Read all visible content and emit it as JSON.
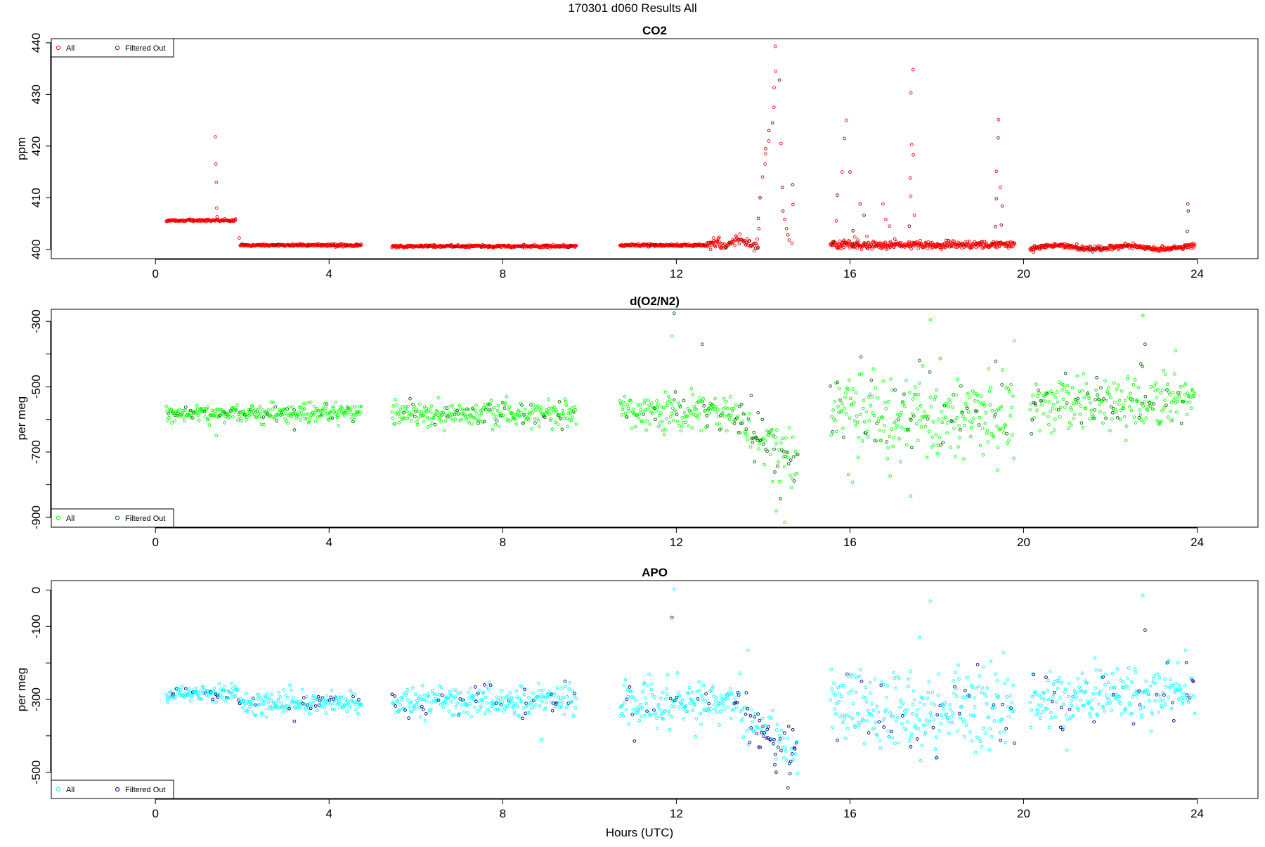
{
  "figure": {
    "title": "170301   d060   Results All",
    "xlabel": "Hours (UTC)"
  },
  "chart_data": [
    {
      "type": "scatter",
      "title": "CO2",
      "xlabel": "",
      "ylabel": "ppm",
      "xlim": [
        -2.4,
        25.4
      ],
      "ylim": [
        398.2,
        440.8
      ],
      "xticks": [
        0,
        4,
        8,
        12,
        16,
        20,
        24
      ],
      "yticks": [
        400,
        410,
        420,
        430,
        440
      ],
      "legend_position": "top-left",
      "series": [
        {
          "name": "All",
          "color": "#ff0000"
        },
        {
          "name": "Filtered Out",
          "color": "#8b0000"
        }
      ],
      "points": {
        "count": 1500,
        "filtered_fraction": 0.15
      }
    },
    {
      "type": "scatter",
      "title": "d(O2/N2)",
      "xlabel": "",
      "ylabel": "per meg",
      "xlim": [
        -2.4,
        25.4
      ],
      "ylim": [
        -930,
        -263
      ],
      "xticks": [
        0,
        4,
        8,
        12,
        16,
        20,
        24
      ],
      "yticks": [
        -300,
        -500,
        -700,
        -900
      ],
      "legend_position": "bottom-left",
      "series": [
        {
          "name": "All",
          "color": "#00ff00"
        },
        {
          "name": "Filtered Out",
          "color": "#006400"
        }
      ],
      "points": {
        "count": 1300,
        "filtered_fraction": 0.15
      }
    },
    {
      "type": "scatter",
      "title": "APO",
      "xlabel": "",
      "ylabel": "per meg",
      "xlim": [
        -2.4,
        25.4
      ],
      "ylim": [
        -572,
        26
      ],
      "xticks": [
        0,
        4,
        8,
        12,
        16,
        20,
        24
      ],
      "yticks": [
        0,
        -100,
        -300,
        -500
      ],
      "legend_position": "bottom-left",
      "series": [
        {
          "name": "All",
          "color": "#00ffff"
        },
        {
          "name": "Filtered Out",
          "color": "#00008b"
        }
      ],
      "points": {
        "count": 1300,
        "filtered_fraction": 0.15
      }
    }
  ]
}
